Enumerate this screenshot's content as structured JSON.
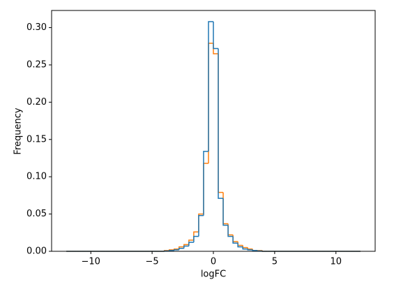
{
  "chart_data": {
    "type": "histogram_step",
    "xlabel": "logFC",
    "ylabel": "Frequency",
    "bins": [
      -12,
      -11.6,
      -11.2,
      -10.8,
      -10.4,
      -10,
      -9.6,
      -9.2,
      -8.8,
      -8.4,
      -8,
      -7.6,
      -7.2,
      -6.8,
      -6.4,
      -6,
      -5.6,
      -5.2,
      -4.8,
      -4.4,
      -4,
      -3.6,
      -3.2,
      -2.8,
      -2.4,
      -2,
      -1.6,
      -1.2,
      -0.8,
      -0.4,
      0,
      0.4,
      0.8,
      1.2,
      1.6,
      2,
      2.4,
      2.8,
      3.2,
      3.6,
      4,
      4.4,
      4.8,
      5.2,
      5.6,
      6,
      6.4,
      6.8,
      7.2,
      7.6,
      8,
      8.4,
      8.8,
      9.2,
      9.6,
      10,
      10.4,
      10.8,
      11.2,
      11.6,
      12
    ],
    "series": [
      {
        "color": "#ff7f0e",
        "values": [
          0,
          0,
          0,
          0,
          0,
          0,
          0,
          0,
          0,
          0,
          0,
          0,
          0,
          0,
          0,
          0,
          0,
          0,
          0,
          0,
          0.001,
          0.002,
          0.003,
          0.006,
          0.009,
          0.015,
          0.026,
          0.05,
          0.118,
          0.279,
          0.265,
          0.079,
          0.037,
          0.022,
          0.013,
          0.008,
          0.005,
          0.003,
          0.001,
          0.001,
          0,
          0,
          0,
          0,
          0,
          0,
          0,
          0,
          0,
          0,
          0,
          0,
          0,
          0,
          0,
          0,
          0,
          0,
          0,
          0
        ]
      },
      {
        "color": "#1f77b4",
        "values": [
          0,
          0,
          0,
          0,
          0,
          0,
          0,
          0,
          0,
          0,
          0,
          0,
          0,
          0,
          0,
          0,
          0,
          0,
          0,
          0,
          0.0005,
          0.001,
          0.002,
          0.004,
          0.007,
          0.012,
          0.02,
          0.048,
          0.134,
          0.308,
          0.272,
          0.071,
          0.035,
          0.02,
          0.011,
          0.006,
          0.003,
          0.002,
          0.001,
          0.0005,
          0,
          0,
          0,
          0,
          0,
          0,
          0,
          0,
          0,
          0,
          0,
          0,
          0,
          0,
          0,
          0,
          0,
          0,
          0,
          0
        ]
      }
    ],
    "xlim": [
      -13.2,
      13.2
    ],
    "ylim": [
      0,
      0.323
    ],
    "xticks": [
      {
        "value": -10,
        "label": "−10"
      },
      {
        "value": -5,
        "label": "−5"
      },
      0,
      5,
      10
    ],
    "yticks": [
      {
        "value": 0,
        "label": "0.00"
      },
      {
        "value": 0.05,
        "label": "0.05"
      },
      {
        "value": 0.1,
        "label": "0.10"
      },
      {
        "value": 0.15,
        "label": "0.15"
      },
      {
        "value": 0.2,
        "label": "0.20"
      },
      {
        "value": 0.25,
        "label": "0.25"
      },
      {
        "value": 0.3,
        "label": "0.30"
      }
    ]
  }
}
